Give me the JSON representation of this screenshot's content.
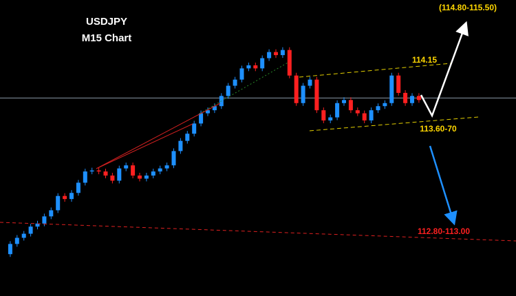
{
  "chart_data": {
    "type": "candlestick",
    "title": "USDJPY",
    "subtitle": "M15 Chart",
    "values": [
      112.61,
      112.71,
      112.77,
      112.81,
      112.88,
      112.91,
      112.98,
      113.04,
      113.18,
      113.15,
      113.21,
      113.31,
      113.42,
      113.43,
      113.42,
      113.38,
      113.33,
      113.45,
      113.48,
      113.38,
      113.35,
      113.38,
      113.42,
      113.45,
      113.48,
      113.62,
      113.72,
      113.79,
      113.89,
      113.99,
      114.02,
      114.06,
      114.16,
      114.26,
      114.32,
      114.43,
      114.46,
      114.43,
      114.53,
      114.59,
      114.56,
      114.61,
      114.36,
      114.09,
      114.26,
      114.32,
      114.02,
      113.92,
      113.95,
      114.09,
      114.12,
      114.02,
      113.99,
      113.92,
      114.02,
      114.06,
      114.09,
      114.36,
      114.19,
      114.09,
      114.16,
      114.12
    ],
    "up_color": "#1e90ff",
    "down_color": "#ff2020",
    "ylim": [
      112.2,
      115.1
    ],
    "reference_line": 114.14,
    "annotations": [
      "(114.80-115.50)",
      "114.15",
      "113.60-70",
      "112.80-113.00"
    ]
  }
}
